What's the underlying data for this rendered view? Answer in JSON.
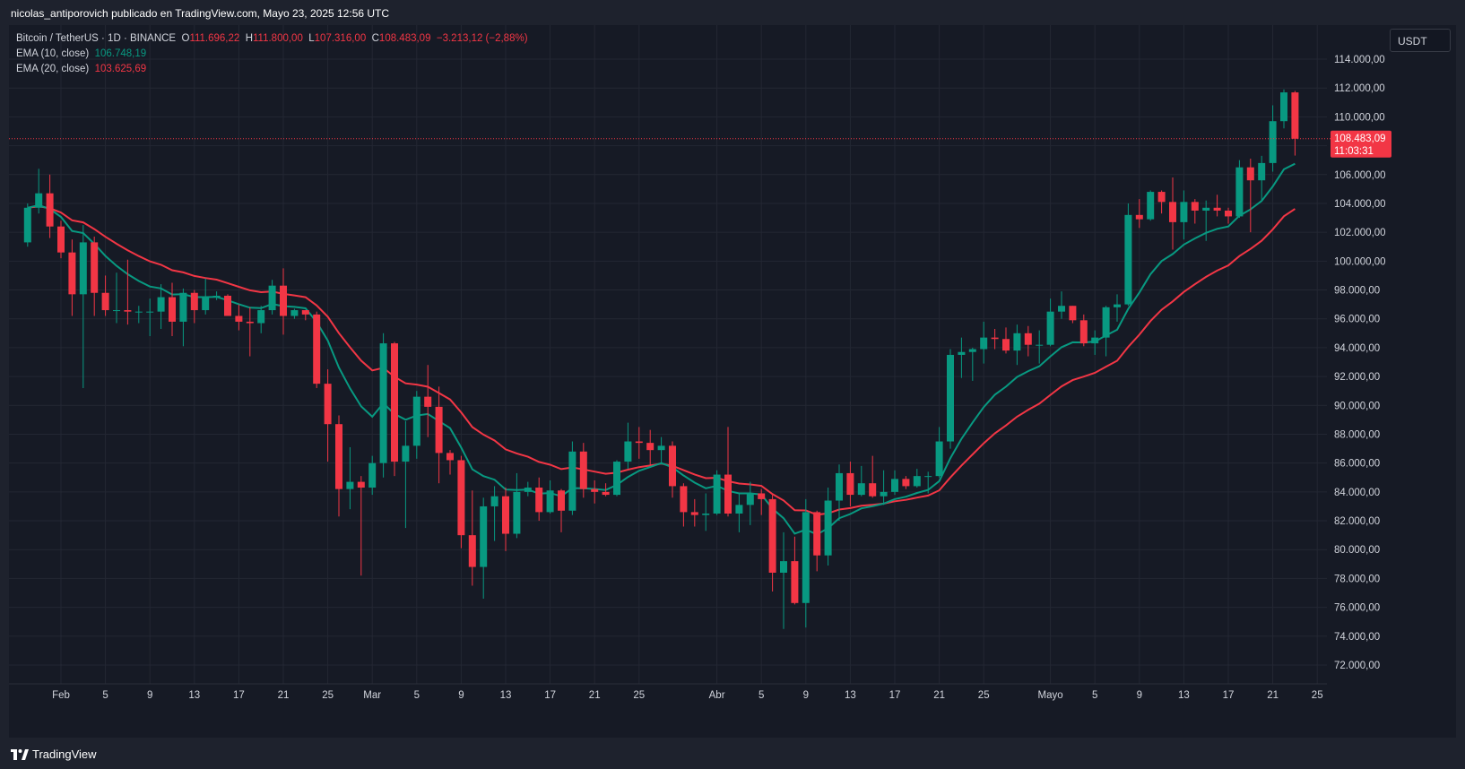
{
  "header": {
    "publish_text": "nicolas_antiporovich publicado en TradingView.com, Mayo 23, 2025 12:56 UTC"
  },
  "legend": {
    "symbol": "Bitcoin / TetherUS · 1D · BINANCE",
    "o_label": "O",
    "o_value": "111.696,22",
    "h_label": "H",
    "h_value": "111.800,00",
    "l_label": "L",
    "l_value": "107.316,00",
    "c_label": "C",
    "c_value": "108.483,09",
    "change": "−3.213,12 (−2,88%)",
    "ema10_label": "EMA (10, close)",
    "ema10_value": "106.748,19",
    "ema20_label": "EMA (20, close)",
    "ema20_value": "103.625,69"
  },
  "currency_button": "USDT",
  "price_tag": {
    "price": "108.483,09",
    "countdown": "11:03:31"
  },
  "footer": {
    "brand": "TradingView"
  },
  "colors": {
    "up": "#089981",
    "down": "#f23645",
    "ema10": "#089981",
    "ema20": "#f23645",
    "grid": "#232733",
    "background": "#161a25",
    "axis_text": "#d1d4dc"
  },
  "chart_data": {
    "type": "candlestick",
    "symbol": "Bitcoin / TetherUS",
    "interval": "1D",
    "exchange": "BINANCE",
    "ylim": [
      71000,
      116000
    ],
    "y_ticks": [
      "114.000,00",
      "112.000,00",
      "110.000,00",
      "108.000,00",
      "106.000,00",
      "104.000,00",
      "102.000,00",
      "100.000,00",
      "98.000,00",
      "96.000,00",
      "94.000,00",
      "92.000,00",
      "90.000,00",
      "88.000,00",
      "86.000,00",
      "84.000,00",
      "82.000,00",
      "80.000,00",
      "78.000,00",
      "76.000,00",
      "74.000,00",
      "72.000,00"
    ],
    "y_tick_values": [
      114000,
      112000,
      110000,
      108000,
      106000,
      104000,
      102000,
      100000,
      98000,
      96000,
      94000,
      92000,
      90000,
      88000,
      86000,
      84000,
      82000,
      80000,
      78000,
      76000,
      74000,
      72000
    ],
    "x_ticks": [
      {
        "label": "Feb",
        "date": "2025-02-01"
      },
      {
        "label": "5",
        "date": "2025-02-05"
      },
      {
        "label": "9",
        "date": "2025-02-09"
      },
      {
        "label": "13",
        "date": "2025-02-13"
      },
      {
        "label": "17",
        "date": "2025-02-17"
      },
      {
        "label": "21",
        "date": "2025-02-21"
      },
      {
        "label": "25",
        "date": "2025-02-25"
      },
      {
        "label": "Mar",
        "date": "2025-03-01"
      },
      {
        "label": "5",
        "date": "2025-03-05"
      },
      {
        "label": "9",
        "date": "2025-03-09"
      },
      {
        "label": "13",
        "date": "2025-03-13"
      },
      {
        "label": "17",
        "date": "2025-03-17"
      },
      {
        "label": "21",
        "date": "2025-03-21"
      },
      {
        "label": "25",
        "date": "2025-03-25"
      },
      {
        "label": "Abr",
        "date": "2025-04-01"
      },
      {
        "label": "5",
        "date": "2025-04-05"
      },
      {
        "label": "9",
        "date": "2025-04-09"
      },
      {
        "label": "13",
        "date": "2025-04-13"
      },
      {
        "label": "17",
        "date": "2025-04-17"
      },
      {
        "label": "21",
        "date": "2025-04-21"
      },
      {
        "label": "25",
        "date": "2025-04-25"
      },
      {
        "label": "Mayo",
        "date": "2025-05-01"
      },
      {
        "label": "5",
        "date": "2025-05-05"
      },
      {
        "label": "9",
        "date": "2025-05-09"
      },
      {
        "label": "13",
        "date": "2025-05-13"
      },
      {
        "label": "17",
        "date": "2025-05-17"
      },
      {
        "label": "21",
        "date": "2025-05-21"
      },
      {
        "label": "25",
        "date": "2025-05-25"
      }
    ],
    "last_price": 108483.09,
    "candles": [
      {
        "date": "2025-01-29",
        "o": 101300,
        "h": 104000,
        "l": 101000,
        "c": 103700
      },
      {
        "date": "2025-01-30",
        "o": 103700,
        "h": 106400,
        "l": 103300,
        "c": 104700
      },
      {
        "date": "2025-01-31",
        "o": 104700,
        "h": 106000,
        "l": 101600,
        "c": 102400
      },
      {
        "date": "2025-02-01",
        "o": 102400,
        "h": 102800,
        "l": 100200,
        "c": 100600
      },
      {
        "date": "2025-02-02",
        "o": 100600,
        "h": 101500,
        "l": 96200,
        "c": 97700
      },
      {
        "date": "2025-02-03",
        "o": 97700,
        "h": 102500,
        "l": 91200,
        "c": 101300
      },
      {
        "date": "2025-02-04",
        "o": 101300,
        "h": 101700,
        "l": 96200,
        "c": 97800
      },
      {
        "date": "2025-02-05",
        "o": 97800,
        "h": 99000,
        "l": 96200,
        "c": 96600
      },
      {
        "date": "2025-02-06",
        "o": 96600,
        "h": 99200,
        "l": 95700,
        "c": 96600
      },
      {
        "date": "2025-02-07",
        "o": 96600,
        "h": 100100,
        "l": 95600,
        "c": 96500
      },
      {
        "date": "2025-02-08",
        "o": 96500,
        "h": 96900,
        "l": 95700,
        "c": 96500
      },
      {
        "date": "2025-02-09",
        "o": 96500,
        "h": 97400,
        "l": 94800,
        "c": 96500
      },
      {
        "date": "2025-02-10",
        "o": 96500,
        "h": 98400,
        "l": 95300,
        "c": 97500
      },
      {
        "date": "2025-02-11",
        "o": 97500,
        "h": 98500,
        "l": 94800,
        "c": 95800
      },
      {
        "date": "2025-02-12",
        "o": 95800,
        "h": 98100,
        "l": 94100,
        "c": 97800
      },
      {
        "date": "2025-02-13",
        "o": 97800,
        "h": 98000,
        "l": 95700,
        "c": 96600
      },
      {
        "date": "2025-02-14",
        "o": 96600,
        "h": 98800,
        "l": 96300,
        "c": 97500
      },
      {
        "date": "2025-02-15",
        "o": 97500,
        "h": 97900,
        "l": 97300,
        "c": 97600
      },
      {
        "date": "2025-02-16",
        "o": 97600,
        "h": 97700,
        "l": 96200,
        "c": 96200
      },
      {
        "date": "2025-02-17",
        "o": 96200,
        "h": 97000,
        "l": 95200,
        "c": 95800
      },
      {
        "date": "2025-02-18",
        "o": 95800,
        "h": 96800,
        "l": 93400,
        "c": 95700
      },
      {
        "date": "2025-02-19",
        "o": 95700,
        "h": 96900,
        "l": 95000,
        "c": 96600
      },
      {
        "date": "2025-02-20",
        "o": 96600,
        "h": 98700,
        "l": 96300,
        "c": 98300
      },
      {
        "date": "2025-02-21",
        "o": 98300,
        "h": 99500,
        "l": 94900,
        "c": 96200
      },
      {
        "date": "2025-02-22",
        "o": 96200,
        "h": 96700,
        "l": 96000,
        "c": 96600
      },
      {
        "date": "2025-02-23",
        "o": 96600,
        "h": 96600,
        "l": 95900,
        "c": 96300
      },
      {
        "date": "2025-02-24",
        "o": 96300,
        "h": 96500,
        "l": 91200,
        "c": 91500
      },
      {
        "date": "2025-02-25",
        "o": 91500,
        "h": 92500,
        "l": 86100,
        "c": 88700
      },
      {
        "date": "2025-02-26",
        "o": 88700,
        "h": 89300,
        "l": 82300,
        "c": 84200
      },
      {
        "date": "2025-02-27",
        "o": 84200,
        "h": 87100,
        "l": 82800,
        "c": 84700
      },
      {
        "date": "2025-02-28",
        "o": 84700,
        "h": 85100,
        "l": 78200,
        "c": 84300
      },
      {
        "date": "2025-03-01",
        "o": 84300,
        "h": 86500,
        "l": 83800,
        "c": 86000
      },
      {
        "date": "2025-03-02",
        "o": 86000,
        "h": 95000,
        "l": 85000,
        "c": 94300
      },
      {
        "date": "2025-03-03",
        "o": 94300,
        "h": 94400,
        "l": 85100,
        "c": 86100
      },
      {
        "date": "2025-03-04",
        "o": 86100,
        "h": 88900,
        "l": 81500,
        "c": 87200
      },
      {
        "date": "2025-03-05",
        "o": 87200,
        "h": 91000,
        "l": 86300,
        "c": 90600
      },
      {
        "date": "2025-03-06",
        "o": 90600,
        "h": 92800,
        "l": 87800,
        "c": 89900
      },
      {
        "date": "2025-03-07",
        "o": 89900,
        "h": 91300,
        "l": 84600,
        "c": 86700
      },
      {
        "date": "2025-03-08",
        "o": 86700,
        "h": 86900,
        "l": 85200,
        "c": 86200
      },
      {
        "date": "2025-03-09",
        "o": 86200,
        "h": 86500,
        "l": 80100,
        "c": 81000
      },
      {
        "date": "2025-03-10",
        "o": 81000,
        "h": 84100,
        "l": 77500,
        "c": 78800
      },
      {
        "date": "2025-03-11",
        "o": 78800,
        "h": 83600,
        "l": 76600,
        "c": 83000
      },
      {
        "date": "2025-03-12",
        "o": 83000,
        "h": 84400,
        "l": 80600,
        "c": 83700
      },
      {
        "date": "2025-03-13",
        "o": 83700,
        "h": 84300,
        "l": 79900,
        "c": 81100
      },
      {
        "date": "2025-03-14",
        "o": 81100,
        "h": 85300,
        "l": 80800,
        "c": 84000
      },
      {
        "date": "2025-03-15",
        "o": 84000,
        "h": 84700,
        "l": 83700,
        "c": 84300
      },
      {
        "date": "2025-03-16",
        "o": 84300,
        "h": 85000,
        "l": 82000,
        "c": 82600
      },
      {
        "date": "2025-03-17",
        "o": 82600,
        "h": 84800,
        "l": 82500,
        "c": 84100
      },
      {
        "date": "2025-03-18",
        "o": 84100,
        "h": 84200,
        "l": 81200,
        "c": 82700
      },
      {
        "date": "2025-03-19",
        "o": 82700,
        "h": 87500,
        "l": 82400,
        "c": 86800
      },
      {
        "date": "2025-03-20",
        "o": 86800,
        "h": 87400,
        "l": 83600,
        "c": 84200
      },
      {
        "date": "2025-03-21",
        "o": 84200,
        "h": 84800,
        "l": 83200,
        "c": 84000
      },
      {
        "date": "2025-03-22",
        "o": 84000,
        "h": 84600,
        "l": 83700,
        "c": 83800
      },
      {
        "date": "2025-03-23",
        "o": 83800,
        "h": 86200,
        "l": 83700,
        "c": 86100
      },
      {
        "date": "2025-03-24",
        "o": 86100,
        "h": 88800,
        "l": 85600,
        "c": 87500
      },
      {
        "date": "2025-03-25",
        "o": 87500,
        "h": 88500,
        "l": 86300,
        "c": 87400
      },
      {
        "date": "2025-03-26",
        "o": 87400,
        "h": 88300,
        "l": 85800,
        "c": 86900
      },
      {
        "date": "2025-03-27",
        "o": 86900,
        "h": 87800,
        "l": 85900,
        "c": 87200
      },
      {
        "date": "2025-03-28",
        "o": 87200,
        "h": 87500,
        "l": 83600,
        "c": 84400
      },
      {
        "date": "2025-03-29",
        "o": 84400,
        "h": 84600,
        "l": 81600,
        "c": 82600
      },
      {
        "date": "2025-03-30",
        "o": 82600,
        "h": 83500,
        "l": 81600,
        "c": 82400
      },
      {
        "date": "2025-03-31",
        "o": 82400,
        "h": 83900,
        "l": 81300,
        "c": 82500
      },
      {
        "date": "2025-04-01",
        "o": 82500,
        "h": 85500,
        "l": 82400,
        "c": 85200
      },
      {
        "date": "2025-04-02",
        "o": 85200,
        "h": 88500,
        "l": 82300,
        "c": 82500
      },
      {
        "date": "2025-04-03",
        "o": 82500,
        "h": 83900,
        "l": 81200,
        "c": 83100
      },
      {
        "date": "2025-04-04",
        "o": 83100,
        "h": 84700,
        "l": 81700,
        "c": 83900
      },
      {
        "date": "2025-04-05",
        "o": 83900,
        "h": 84200,
        "l": 82400,
        "c": 83500
      },
      {
        "date": "2025-04-06",
        "o": 83500,
        "h": 83800,
        "l": 77100,
        "c": 78400
      },
      {
        "date": "2025-04-07",
        "o": 78400,
        "h": 81200,
        "l": 74500,
        "c": 79200
      },
      {
        "date": "2025-04-08",
        "o": 79200,
        "h": 80900,
        "l": 76200,
        "c": 76300
      },
      {
        "date": "2025-04-09",
        "o": 76300,
        "h": 83500,
        "l": 74600,
        "c": 82600
      },
      {
        "date": "2025-04-10",
        "o": 82600,
        "h": 82700,
        "l": 78500,
        "c": 79600
      },
      {
        "date": "2025-04-11",
        "o": 79600,
        "h": 84300,
        "l": 78900,
        "c": 83400
      },
      {
        "date": "2025-04-12",
        "o": 83400,
        "h": 85900,
        "l": 82000,
        "c": 85300
      },
      {
        "date": "2025-04-13",
        "o": 85300,
        "h": 86100,
        "l": 83000,
        "c": 83800
      },
      {
        "date": "2025-04-14",
        "o": 83800,
        "h": 85800,
        "l": 83700,
        "c": 84600
      },
      {
        "date": "2025-04-15",
        "o": 84600,
        "h": 86500,
        "l": 83600,
        "c": 83700
      },
      {
        "date": "2025-04-16",
        "o": 83700,
        "h": 85500,
        "l": 83100,
        "c": 84000
      },
      {
        "date": "2025-04-17",
        "o": 84000,
        "h": 85500,
        "l": 83800,
        "c": 84900
      },
      {
        "date": "2025-04-18",
        "o": 84900,
        "h": 85100,
        "l": 84200,
        "c": 84400
      },
      {
        "date": "2025-04-19",
        "o": 84400,
        "h": 85600,
        "l": 84300,
        "c": 85100
      },
      {
        "date": "2025-04-20",
        "o": 85100,
        "h": 85400,
        "l": 83900,
        "c": 85100
      },
      {
        "date": "2025-04-21",
        "o": 85100,
        "h": 88500,
        "l": 85000,
        "c": 87500
      },
      {
        "date": "2025-04-22",
        "o": 87500,
        "h": 93900,
        "l": 87000,
        "c": 93500
      },
      {
        "date": "2025-04-23",
        "o": 93500,
        "h": 94700,
        "l": 91900,
        "c": 93700
      },
      {
        "date": "2025-04-24",
        "o": 93700,
        "h": 94000,
        "l": 91700,
        "c": 93900
      },
      {
        "date": "2025-04-25",
        "o": 93900,
        "h": 95800,
        "l": 92900,
        "c": 94700
      },
      {
        "date": "2025-04-26",
        "o": 94700,
        "h": 95300,
        "l": 93900,
        "c": 94600
      },
      {
        "date": "2025-04-27",
        "o": 94600,
        "h": 95400,
        "l": 93600,
        "c": 93800
      },
      {
        "date": "2025-04-28",
        "o": 93800,
        "h": 95600,
        "l": 92800,
        "c": 95000
      },
      {
        "date": "2025-04-29",
        "o": 95000,
        "h": 95500,
        "l": 93400,
        "c": 94200
      },
      {
        "date": "2025-04-30",
        "o": 94200,
        "h": 95200,
        "l": 92900,
        "c": 94200
      },
      {
        "date": "2025-05-01",
        "o": 94200,
        "h": 97400,
        "l": 94100,
        "c": 96500
      },
      {
        "date": "2025-05-02",
        "o": 96500,
        "h": 97900,
        "l": 96000,
        "c": 96900
      },
      {
        "date": "2025-05-03",
        "o": 96900,
        "h": 96900,
        "l": 95700,
        "c": 95900
      },
      {
        "date": "2025-05-04",
        "o": 95900,
        "h": 96300,
        "l": 94100,
        "c": 94300
      },
      {
        "date": "2025-05-05",
        "o": 94300,
        "h": 95200,
        "l": 93500,
        "c": 94700
      },
      {
        "date": "2025-05-06",
        "o": 94700,
        "h": 96900,
        "l": 93400,
        "c": 96800
      },
      {
        "date": "2025-05-07",
        "o": 96800,
        "h": 97700,
        "l": 95800,
        "c": 97000
      },
      {
        "date": "2025-05-08",
        "o": 97000,
        "h": 104000,
        "l": 96900,
        "c": 103200
      },
      {
        "date": "2025-05-09",
        "o": 103200,
        "h": 104300,
        "l": 102300,
        "c": 102900
      },
      {
        "date": "2025-05-10",
        "o": 102900,
        "h": 104900,
        "l": 102800,
        "c": 104800
      },
      {
        "date": "2025-05-11",
        "o": 104800,
        "h": 104900,
        "l": 103300,
        "c": 104100
      },
      {
        "date": "2025-05-12",
        "o": 104100,
        "h": 105800,
        "l": 100800,
        "c": 102700
      },
      {
        "date": "2025-05-13",
        "o": 102700,
        "h": 104900,
        "l": 101500,
        "c": 104100
      },
      {
        "date": "2025-05-14",
        "o": 104100,
        "h": 104300,
        "l": 102600,
        "c": 103500
      },
      {
        "date": "2025-05-15",
        "o": 103500,
        "h": 104200,
        "l": 101400,
        "c": 103700
      },
      {
        "date": "2025-05-16",
        "o": 103700,
        "h": 104600,
        "l": 103100,
        "c": 103500
      },
      {
        "date": "2025-05-17",
        "o": 103500,
        "h": 103700,
        "l": 102600,
        "c": 103100
      },
      {
        "date": "2025-05-18",
        "o": 103100,
        "h": 107000,
        "l": 103000,
        "c": 106500
      },
      {
        "date": "2025-05-19",
        "o": 106500,
        "h": 107100,
        "l": 102000,
        "c": 105600
      },
      {
        "date": "2025-05-20",
        "o": 105600,
        "h": 107300,
        "l": 104200,
        "c": 106800
      },
      {
        "date": "2025-05-21",
        "o": 106800,
        "h": 110800,
        "l": 106200,
        "c": 109700
      },
      {
        "date": "2025-05-22",
        "o": 109700,
        "h": 111900,
        "l": 109200,
        "c": 111696.22
      },
      {
        "date": "2025-05-23",
        "o": 111696.22,
        "h": 111800,
        "l": 107316,
        "c": 108483.09
      }
    ],
    "series": [
      {
        "name": "EMA (10, close)",
        "color": "#089981"
      },
      {
        "name": "EMA (20, close)",
        "color": "#f23645"
      }
    ]
  }
}
